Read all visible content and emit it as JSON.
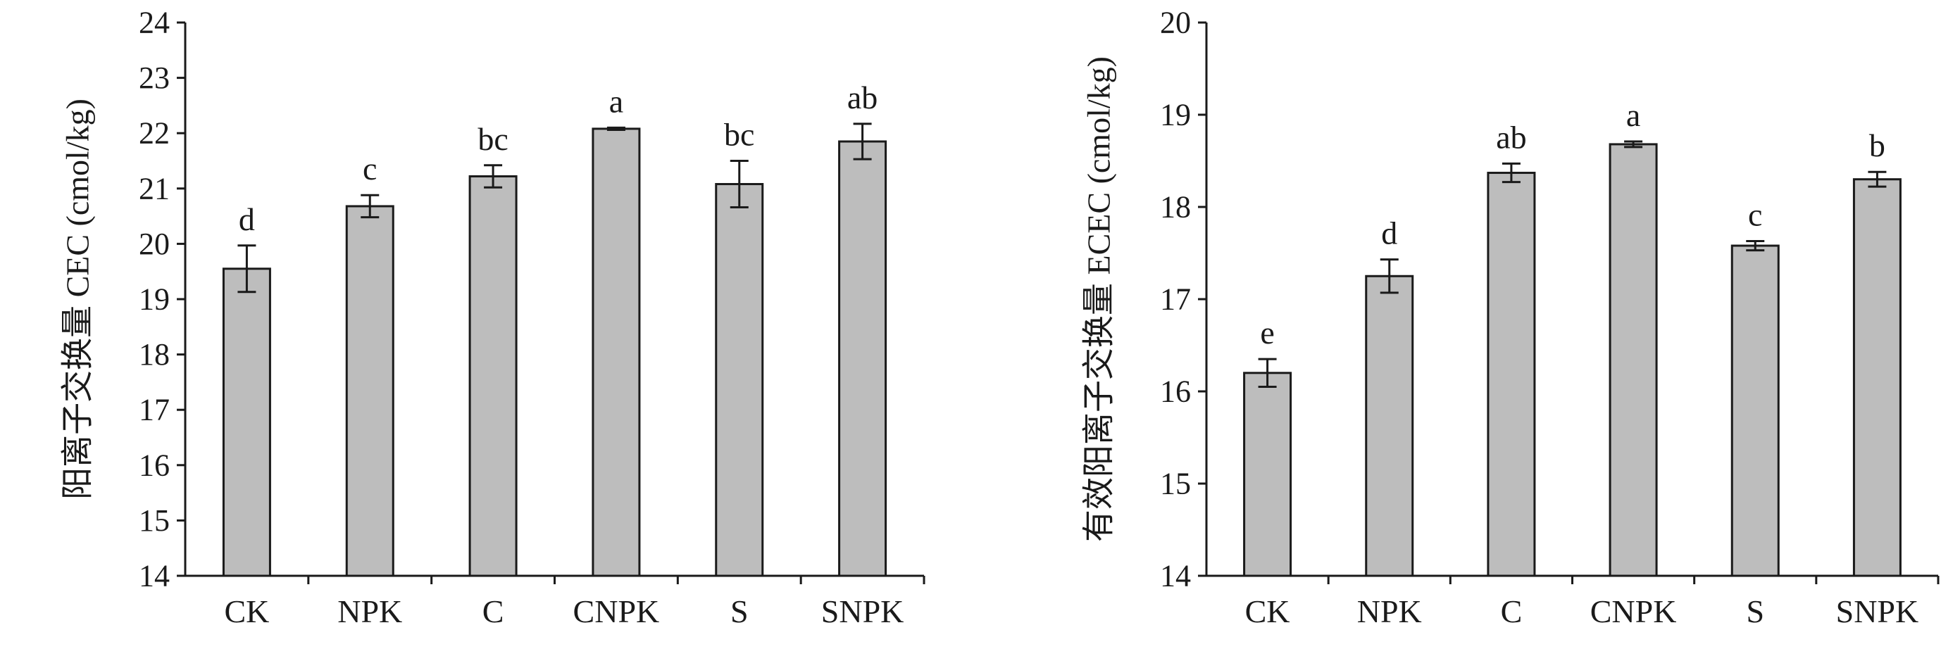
{
  "chart_data": [
    {
      "type": "bar",
      "title": "",
      "xlabel": "",
      "ylabel": "阳离子交换量 CEC (cmol/kg)",
      "categories": [
        "CK",
        "NPK",
        "C",
        "CNPK",
        "S",
        "SNPK"
      ],
      "values": [
        19.55,
        20.68,
        21.22,
        22.08,
        21.08,
        21.85
      ],
      "errors": [
        0.42,
        0.2,
        0.2,
        0.02,
        0.42,
        0.32
      ],
      "significance": [
        "d",
        "c",
        "bc",
        "a",
        "bc",
        "ab"
      ],
      "ylim": [
        14,
        24
      ],
      "yticks": [
        "14",
        "15",
        "16",
        "17",
        "18",
        "19",
        "20",
        "21",
        "22",
        "23",
        "24"
      ],
      "grid": false,
      "bar_color": "#bdbdbd"
    },
    {
      "type": "bar",
      "title": "",
      "xlabel": "",
      "ylabel": "有效阳离子交换量 ECEC (cmol/kg)",
      "categories": [
        "CK",
        "NPK",
        "C",
        "CNPK",
        "S",
        "SNPK"
      ],
      "values": [
        16.2,
        17.25,
        18.37,
        18.68,
        17.58,
        18.3
      ],
      "errors": [
        0.15,
        0.18,
        0.1,
        0.03,
        0.05,
        0.08
      ],
      "significance": [
        "e",
        "d",
        "ab",
        "a",
        "c",
        "b"
      ],
      "ylim": [
        14,
        20
      ],
      "yticks": [
        "14",
        "15",
        "16",
        "17",
        "18",
        "19",
        "20"
      ],
      "grid": false,
      "bar_color": "#bdbdbd"
    }
  ]
}
